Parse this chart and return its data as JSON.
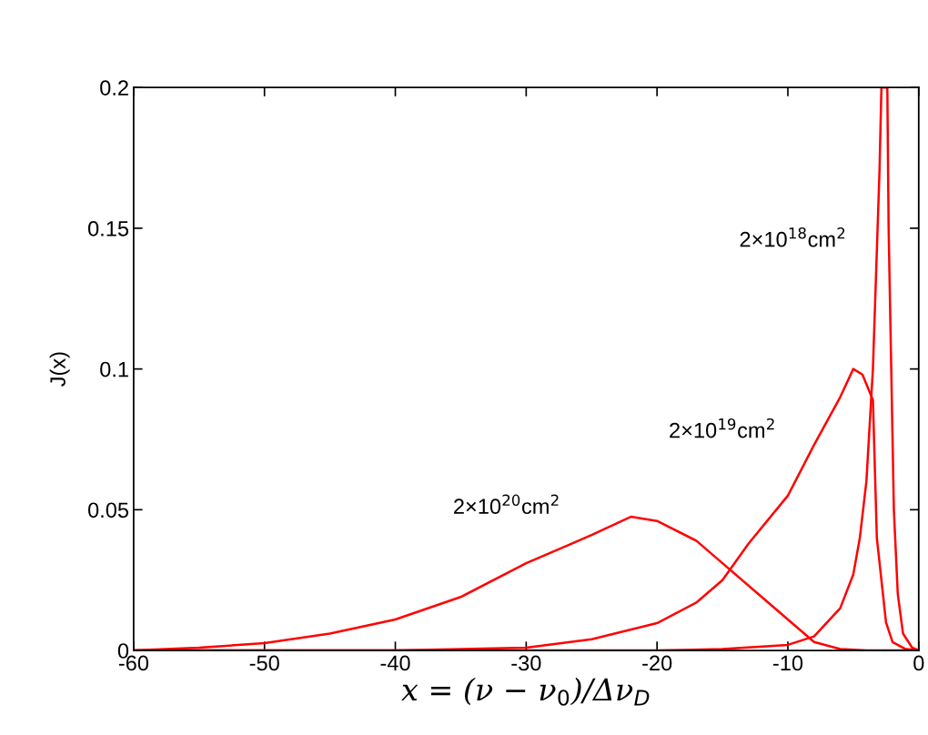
{
  "chart_data": {
    "type": "line",
    "xlabel": "x = (ν − ν$_{0}$)/Δν$_{D}$",
    "ylabel": "J(x)",
    "xlim": [
      -60,
      0
    ],
    "ylim": [
      0,
      0.2
    ],
    "xticks": [
      -60,
      -50,
      -40,
      -30,
      -20,
      -10,
      0
    ],
    "yticks": [
      0,
      0.05,
      0.1,
      0.15,
      0.2
    ],
    "grid": false,
    "marker": "none",
    "line_style": "solid",
    "series": [
      {
        "name": "2×10$^{20}$cm$^{2}$",
        "color": "#ff0000",
        "x": [
          -60,
          -55,
          -50,
          -45,
          -40,
          -35,
          -30,
          -27,
          -25,
          -22,
          -20,
          -17,
          -15,
          -12,
          -10,
          -8,
          -6,
          -4,
          -2,
          0
        ],
        "values": [
          0,
          0.001,
          0.0026,
          0.006,
          0.011,
          0.019,
          0.031,
          0.037,
          0.041,
          0.0475,
          0.046,
          0.039,
          0.031,
          0.019,
          0.011,
          0.003,
          0.0005,
          0,
          0,
          0
        ]
      },
      {
        "name": "2×10$^{19}$cm$^{2}$",
        "color": "#ff0000",
        "x": [
          -60,
          -40,
          -30,
          -25,
          -20,
          -17,
          -15,
          -13,
          -10,
          -8,
          -6,
          -5,
          -4.3,
          -3.5,
          -3.2,
          -2.5,
          -2,
          -1,
          0
        ],
        "values": [
          0,
          0,
          0.001,
          0.004,
          0.0097,
          0.017,
          0.025,
          0.038,
          0.055,
          0.073,
          0.09,
          0.1,
          0.098,
          0.089,
          0.04,
          0.01,
          0.003,
          0.0005,
          0
        ]
      },
      {
        "name": "2×10$^{18}$cm$^{2}$",
        "color": "#ff0000",
        "x": [
          -60,
          -20,
          -15,
          -10,
          -8,
          -6,
          -5,
          -4.5,
          -4,
          -3.5,
          -3,
          -2.85,
          -2.4,
          -2.3,
          -2.1,
          -1.9,
          -1.6,
          -1.2,
          -0.5,
          0
        ],
        "values": [
          0,
          0,
          0.0005,
          0.002,
          0.005,
          0.015,
          0.027,
          0.04,
          0.06,
          0.1,
          0.17,
          0.2,
          0.2,
          0.15,
          0.1,
          0.05,
          0.02,
          0.006,
          0.001,
          0
        ]
      }
    ]
  }
}
